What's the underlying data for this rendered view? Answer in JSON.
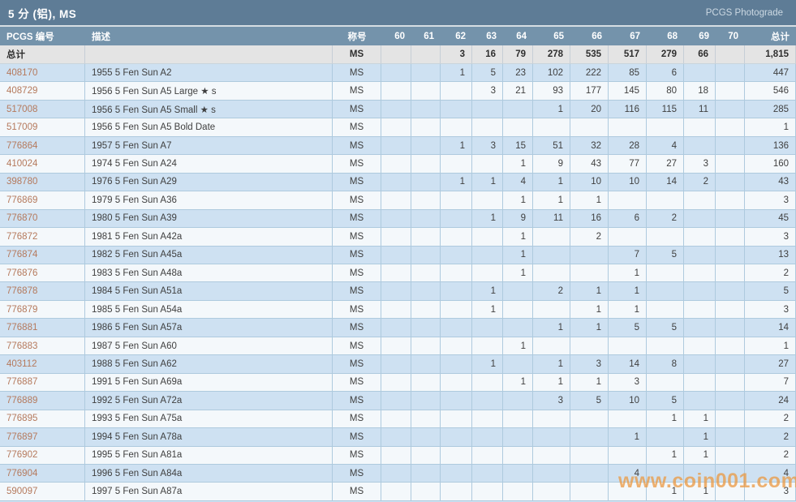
{
  "title_bar": {
    "title": "5 分 (铝), MS",
    "link": "PCGS Photograde"
  },
  "table": {
    "headers": {
      "number": "PCGS 编号",
      "description": "描述",
      "designation": "称号",
      "grades": [
        "60",
        "61",
        "62",
        "63",
        "64",
        "65",
        "66",
        "67",
        "68",
        "69",
        "70"
      ],
      "total": "总计"
    },
    "total_row": {
      "label": "总计",
      "designation": "MS",
      "grades": [
        "",
        "",
        "3",
        "16",
        "79",
        "278",
        "535",
        "517",
        "279",
        "66",
        ""
      ],
      "total": "1,815"
    },
    "rows": [
      {
        "number": "408170",
        "description": "1955 5 Fen Sun A2",
        "designation": "MS",
        "grades": [
          "",
          "",
          "1",
          "5",
          "23",
          "102",
          "222",
          "85",
          "6",
          "",
          ""
        ],
        "total": "447"
      },
      {
        "number": "408729",
        "description": "1956 5 Fen Sun A5 Large ★ s",
        "designation": "MS",
        "grades": [
          "",
          "",
          "",
          "3",
          "21",
          "93",
          "177",
          "145",
          "80",
          "18",
          ""
        ],
        "total": "546"
      },
      {
        "number": "517008",
        "description": "1956 5 Fen Sun A5 Small ★ s",
        "designation": "MS",
        "grades": [
          "",
          "",
          "",
          "",
          "",
          "1",
          "20",
          "116",
          "115",
          "11",
          ""
        ],
        "total": "285"
      },
      {
        "number": "517009",
        "description": "1956 5 Fen Sun A5 Bold Date",
        "designation": "MS",
        "grades": [
          "",
          "",
          "",
          "",
          "",
          "",
          "",
          "",
          "",
          "",
          ""
        ],
        "total": "1"
      },
      {
        "number": "776864",
        "description": "1957 5 Fen Sun A7",
        "designation": "MS",
        "grades": [
          "",
          "",
          "1",
          "3",
          "15",
          "51",
          "32",
          "28",
          "4",
          "",
          ""
        ],
        "total": "136"
      },
      {
        "number": "410024",
        "description": "1974 5 Fen Sun A24",
        "designation": "MS",
        "grades": [
          "",
          "",
          "",
          "",
          "1",
          "9",
          "43",
          "77",
          "27",
          "3",
          ""
        ],
        "total": "160"
      },
      {
        "number": "398780",
        "description": "1976 5 Fen Sun A29",
        "designation": "MS",
        "grades": [
          "",
          "",
          "1",
          "1",
          "4",
          "1",
          "10",
          "10",
          "14",
          "2",
          ""
        ],
        "total": "43"
      },
      {
        "number": "776869",
        "description": "1979 5 Fen Sun A36",
        "designation": "MS",
        "grades": [
          "",
          "",
          "",
          "",
          "1",
          "1",
          "1",
          "",
          "",
          "",
          ""
        ],
        "total": "3"
      },
      {
        "number": "776870",
        "description": "1980 5 Fen Sun A39",
        "designation": "MS",
        "grades": [
          "",
          "",
          "",
          "1",
          "9",
          "11",
          "16",
          "6",
          "2",
          "",
          ""
        ],
        "total": "45"
      },
      {
        "number": "776872",
        "description": "1981 5 Fen Sun A42a",
        "designation": "MS",
        "grades": [
          "",
          "",
          "",
          "",
          "1",
          "",
          "2",
          "",
          "",
          "",
          ""
        ],
        "total": "3"
      },
      {
        "number": "776874",
        "description": "1982 5 Fen Sun A45a",
        "designation": "MS",
        "grades": [
          "",
          "",
          "",
          "",
          "1",
          "",
          "",
          "7",
          "5",
          "",
          ""
        ],
        "total": "13"
      },
      {
        "number": "776876",
        "description": "1983 5 Fen Sun A48a",
        "designation": "MS",
        "grades": [
          "",
          "",
          "",
          "",
          "1",
          "",
          "",
          "1",
          "",
          "",
          ""
        ],
        "total": "2"
      },
      {
        "number": "776878",
        "description": "1984 5 Fen Sun A51a",
        "designation": "MS",
        "grades": [
          "",
          "",
          "",
          "1",
          "",
          "2",
          "1",
          "1",
          "",
          "",
          ""
        ],
        "total": "5"
      },
      {
        "number": "776879",
        "description": "1985 5 Fen Sun A54a",
        "designation": "MS",
        "grades": [
          "",
          "",
          "",
          "1",
          "",
          "",
          "1",
          "1",
          "",
          "",
          ""
        ],
        "total": "3"
      },
      {
        "number": "776881",
        "description": "1986 5 Fen Sun A57a",
        "designation": "MS",
        "grades": [
          "",
          "",
          "",
          "",
          "",
          "1",
          "1",
          "5",
          "5",
          "",
          ""
        ],
        "total": "14"
      },
      {
        "number": "776883",
        "description": "1987 5 Fen Sun A60",
        "designation": "MS",
        "grades": [
          "",
          "",
          "",
          "",
          "1",
          "",
          "",
          "",
          "",
          "",
          ""
        ],
        "total": "1"
      },
      {
        "number": "403112",
        "description": "1988 5 Fen Sun A62",
        "designation": "MS",
        "grades": [
          "",
          "",
          "",
          "1",
          "",
          "1",
          "3",
          "14",
          "8",
          "",
          ""
        ],
        "total": "27"
      },
      {
        "number": "776887",
        "description": "1991 5 Fen Sun A69a",
        "designation": "MS",
        "grades": [
          "",
          "",
          "",
          "",
          "1",
          "1",
          "1",
          "3",
          "",
          "",
          ""
        ],
        "total": "7"
      },
      {
        "number": "776889",
        "description": "1992 5 Fen Sun A72a",
        "designation": "MS",
        "grades": [
          "",
          "",
          "",
          "",
          "",
          "3",
          "5",
          "10",
          "5",
          "",
          ""
        ],
        "total": "24"
      },
      {
        "number": "776895",
        "description": "1993 5 Fen Sun A75a",
        "designation": "MS",
        "grades": [
          "",
          "",
          "",
          "",
          "",
          "",
          "",
          "",
          "1",
          "1",
          ""
        ],
        "total": "2"
      },
      {
        "number": "776897",
        "description": "1994 5 Fen Sun A78a",
        "designation": "MS",
        "grades": [
          "",
          "",
          "",
          "",
          "",
          "",
          "",
          "1",
          "",
          "1",
          ""
        ],
        "total": "2"
      },
      {
        "number": "776902",
        "description": "1995 5 Fen Sun A81a",
        "designation": "MS",
        "grades": [
          "",
          "",
          "",
          "",
          "",
          "",
          "",
          "",
          "1",
          "1",
          ""
        ],
        "total": "2"
      },
      {
        "number": "776904",
        "description": "1996 5 Fen Sun A84a",
        "designation": "MS",
        "grades": [
          "",
          "",
          "",
          "",
          "",
          "",
          "",
          "4",
          "",
          "",
          ""
        ],
        "total": "4"
      },
      {
        "number": "590097",
        "description": "1997 5 Fen Sun A87a",
        "designation": "MS",
        "grades": [
          "",
          "",
          "",
          "",
          "",
          "",
          "",
          "",
          "1",
          "1",
          ""
        ],
        "total": "3"
      }
    ]
  },
  "watermark": "www.coin001.com",
  "colors": {
    "title_bar_bg": "#5e7c96",
    "header_bg": "#7493ab",
    "row_blue": "#cee1f2",
    "row_white": "#f4f8fb",
    "total_row_bg": "#e4e4e4",
    "cell_border": "#aecade",
    "num_color": "#b5795c",
    "watermark_color": "#EB9942"
  }
}
